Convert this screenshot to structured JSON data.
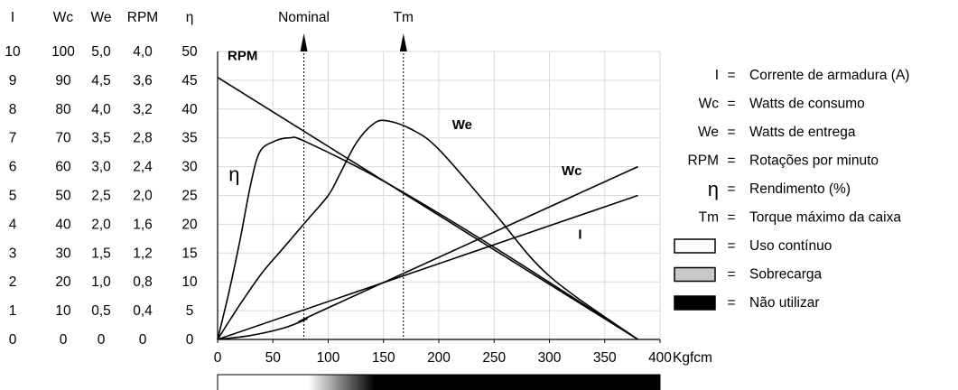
{
  "chart_data": {
    "type": "line",
    "x_axis": {
      "unit": "Kgfcm",
      "ticks": [
        "0",
        "50",
        "100",
        "150",
        "200",
        "250",
        "300",
        "350",
        "400"
      ],
      "range": [
        0,
        400
      ]
    },
    "y_axes": {
      "headers": [
        "I",
        "Wc",
        "We",
        "RPM",
        "η"
      ],
      "rows": [
        [
          "10",
          "100",
          "5,0",
          "4,0",
          "50"
        ],
        [
          "9",
          "90",
          "4,5",
          "3,6",
          "45"
        ],
        [
          "8",
          "80",
          "4,0",
          "3,2",
          "40"
        ],
        [
          "7",
          "70",
          "3,5",
          "2,8",
          "35"
        ],
        [
          "6",
          "60",
          "3,0",
          "2,4",
          "30"
        ],
        [
          "5",
          "50",
          "2,5",
          "2,0",
          "25"
        ],
        [
          "4",
          "40",
          "2,0",
          "1,6",
          "20"
        ],
        [
          "3",
          "30",
          "1,5",
          "1,2",
          "15"
        ],
        [
          "2",
          "20",
          "1,0",
          "0,8",
          "10"
        ],
        [
          "1",
          "10",
          "0,5",
          "0,4",
          "5"
        ],
        [
          "0",
          "0",
          "0",
          "0",
          "0"
        ]
      ],
      "range": [
        0,
        50
      ]
    },
    "markers": [
      {
        "label": "Nominal",
        "x": 78
      },
      {
        "label": "Tm",
        "x": 168
      }
    ],
    "series": [
      {
        "name": "RPM",
        "points": [
          [
            0,
            45.5
          ],
          [
            380,
            0
          ]
        ]
      },
      {
        "name": "I",
        "points": [
          [
            0,
            0
          ],
          [
            380,
            25
          ]
        ]
      },
      {
        "name": "Wc",
        "points": [
          [
            0,
            0
          ],
          [
            30,
            0.7
          ],
          [
            60,
            2.0
          ],
          [
            80,
            3.5
          ],
          [
            100,
            5.5
          ],
          [
            380,
            30
          ]
        ]
      },
      {
        "name": "η",
        "points": [
          [
            0,
            0
          ],
          [
            10,
            8
          ],
          [
            20,
            17
          ],
          [
            30,
            27
          ],
          [
            38,
            32.5
          ],
          [
            50,
            34.3
          ],
          [
            65,
            35
          ],
          [
            80,
            34.3
          ],
          [
            150,
            27.5
          ],
          [
            250,
            16
          ],
          [
            380,
            0
          ]
        ]
      },
      {
        "name": "We",
        "points": [
          [
            0,
            0
          ],
          [
            20,
            6
          ],
          [
            40,
            11.5
          ],
          [
            60,
            16
          ],
          [
            80,
            20.5
          ],
          [
            100,
            25
          ],
          [
            110,
            28.5
          ],
          [
            125,
            34
          ],
          [
            140,
            37.3
          ],
          [
            152,
            38
          ],
          [
            175,
            36.5
          ],
          [
            200,
            33
          ],
          [
            250,
            22
          ],
          [
            300,
            11
          ],
          [
            380,
            0
          ]
        ]
      }
    ],
    "series_labels": [
      {
        "text": "RPM",
        "x": 9,
        "y": 48.5
      },
      {
        "text": "η",
        "x": 10,
        "y": 27.5
      },
      {
        "text": "We",
        "x": 212,
        "y": 36.5
      },
      {
        "text": "Wc",
        "x": 311,
        "y": 28.5
      },
      {
        "text": "I",
        "x": 326,
        "y": 17.5
      }
    ],
    "legend": [
      {
        "symbol": "I",
        "text": "Corrente de armadura (A)"
      },
      {
        "symbol": "Wc",
        "text": "Watts de consumo"
      },
      {
        "symbol": "We",
        "text": "Watts de entrega"
      },
      {
        "symbol": "RPM",
        "text": "Rotações por minuto"
      },
      {
        "symbol": "η",
        "text": "Rendimento (%)"
      },
      {
        "symbol": "Tm",
        "text": "Torque máximo da caixa"
      },
      {
        "box": "#ffffff",
        "text": "Uso contínuo"
      },
      {
        "box": "#c8c8c8",
        "text": "Sobrecarga"
      },
      {
        "box": "#000000",
        "text": "Não utilizar"
      }
    ],
    "zone_bar": {
      "stops": [
        {
          "x": 82,
          "color": "#ffffff"
        },
        {
          "x": 142,
          "color": "#000000"
        }
      ]
    },
    "grid": true,
    "colors": {
      "line": "#000000",
      "grid": "#d9d9d9",
      "text": "#000000"
    }
  }
}
